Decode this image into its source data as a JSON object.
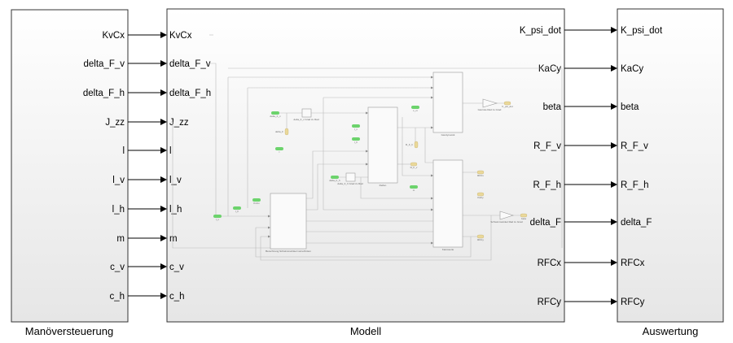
{
  "blocks": {
    "left": {
      "label": "Manöversteuerung",
      "outputs": [
        "KvCx",
        "delta_F_v",
        "delta_F_h",
        "J_zz",
        "l",
        "l_v",
        "l_h",
        "m",
        "c_v",
        "c_h"
      ]
    },
    "middle": {
      "label": "Modell",
      "inputs": [
        "KvCx",
        "delta_F_v",
        "delta_F_h",
        "J_zz",
        "l",
        "l_v",
        "l_h",
        "m",
        "c_v",
        "c_h"
      ]
    },
    "right": {
      "label": "Auswertung",
      "inputs": [
        "K_psi_dot",
        "KaCy",
        "beta",
        "R_F_v",
        "R_F_h",
        "delta_F",
        "RFCx",
        "RFCy"
      ]
    },
    "right_signals": [
      "K_psi_dot",
      "KaCy",
      "beta",
      "R_F_v",
      "R_F_h",
      "delta_F",
      "RFCx",
      "RFCy"
    ]
  },
  "inner": {
    "subsystems": {
      "gierdynamik": "Gierdynamik",
      "reifen": "Reifen",
      "karosserie": "Karosserie",
      "berechnung": "Berechnung Schwimmwinkel vorne/hinten"
    },
    "gains": {
      "gv": "delta_F_v Grad zu Rad",
      "gh": "delta_F_h Grad zu Rad",
      "gierrate": "Gierrate Rad zu Grad",
      "schwimm": "Schwimmwinkel Rad zu Grad"
    },
    "from_tags": [
      "delta_F_v",
      "l",
      "l_v",
      "l_h",
      "c_m",
      "delta_F_h",
      "m",
      "KvCx",
      "l_h",
      "l_v"
    ],
    "goto_tags": [
      "delta_F",
      "K_psi_dot",
      "R_F_h",
      "R_F_v",
      "RFCx",
      "KaCy",
      "beta",
      "RFCy"
    ]
  },
  "colors": {
    "from_tag": "#6cd36c",
    "goto_tag": "#ead89a",
    "block_border": "#333333",
    "inner_line": "#bbbbbb"
  }
}
